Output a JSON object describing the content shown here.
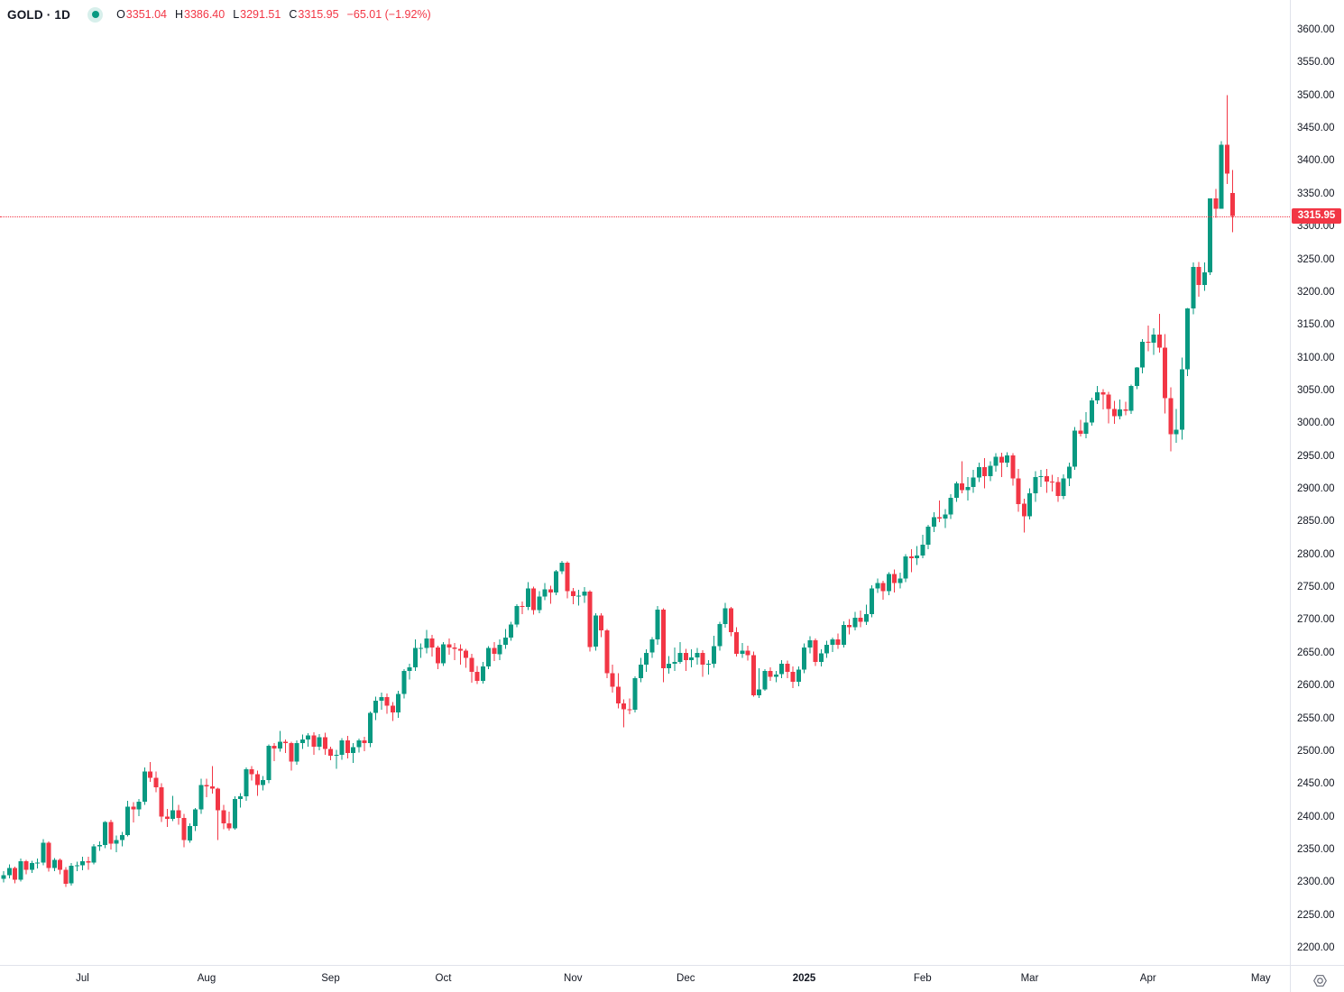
{
  "header": {
    "symbol_title": "GOLD · 1D",
    "ohlc": {
      "o_label": "O",
      "o": "3351.04",
      "h_label": "H",
      "h": "3386.40",
      "l_label": "L",
      "l": "3291.51",
      "c_label": "C",
      "c": "3315.95",
      "change": "−65.01 (−1.92%)"
    }
  },
  "colors": {
    "up": "#089981",
    "down": "#f23645",
    "axis_text": "#131722",
    "separator": "#e0e3eb",
    "last_price_bg": "#f23645",
    "last_price_text": "#ffffff"
  },
  "icons": {
    "indicator_dot": "teal-dot",
    "gear": "settings-gear"
  },
  "chart_data": {
    "type": "candlestick",
    "title": "GOLD · 1D",
    "symbol": "GOLD",
    "interval": "1D",
    "last_price": 3315.95,
    "last_price_label": "3315.95",
    "y_axis": {
      "min": 2200,
      "max": 3600,
      "step": 50,
      "ticks": [
        "3600.00",
        "3550.00",
        "3500.00",
        "3450.00",
        "3400.00",
        "3350.00",
        "3300.00",
        "3250.00",
        "3200.00",
        "3150.00",
        "3100.00",
        "3050.00",
        "3000.00",
        "2950.00",
        "2900.00",
        "2850.00",
        "2800.00",
        "2750.00",
        "2700.00",
        "2650.00",
        "2600.00",
        "2550.00",
        "2500.00",
        "2450.00",
        "2400.00",
        "2350.00",
        "2300.00",
        "2250.00",
        "2200.00"
      ]
    },
    "x_axis": {
      "labels": [
        {
          "label": "Jul",
          "index": 14,
          "year": false
        },
        {
          "label": "Aug",
          "index": 36,
          "year": false
        },
        {
          "label": "Sep",
          "index": 58,
          "year": false
        },
        {
          "label": "Oct",
          "index": 78,
          "year": false
        },
        {
          "label": "Nov",
          "index": 101,
          "year": false
        },
        {
          "label": "Dec",
          "index": 121,
          "year": false
        },
        {
          "label": "2025",
          "index": 142,
          "year": true
        },
        {
          "label": "Feb",
          "index": 163,
          "year": false
        },
        {
          "label": "Mar",
          "index": 182,
          "year": false
        },
        {
          "label": "Apr",
          "index": 203,
          "year": false
        },
        {
          "label": "May",
          "index": 223,
          "year": false
        }
      ]
    },
    "candles": [
      [
        2305,
        2317,
        2300,
        2311
      ],
      [
        2311,
        2327,
        2306,
        2322
      ],
      [
        2322,
        2324,
        2298,
        2304
      ],
      [
        2304,
        2336,
        2301,
        2332
      ],
      [
        2332,
        2334,
        2312,
        2319
      ],
      [
        2319,
        2333,
        2314,
        2329
      ],
      [
        2329,
        2336,
        2321,
        2330
      ],
      [
        2330,
        2366,
        2326,
        2360
      ],
      [
        2360,
        2362,
        2316,
        2322
      ],
      [
        2322,
        2337,
        2317,
        2334
      ],
      [
        2334,
        2336,
        2312,
        2319
      ],
      [
        2319,
        2323,
        2293,
        2298
      ],
      [
        2298,
        2329,
        2295,
        2325
      ],
      [
        2325,
        2331,
        2317,
        2326
      ],
      [
        2326,
        2339,
        2318,
        2332
      ],
      [
        2332,
        2339,
        2319,
        2330
      ],
      [
        2330,
        2358,
        2327,
        2355
      ],
      [
        2355,
        2362,
        2348,
        2357
      ],
      [
        2357,
        2393,
        2352,
        2392
      ],
      [
        2392,
        2395,
        2350,
        2359
      ],
      [
        2359,
        2371,
        2346,
        2364
      ],
      [
        2364,
        2377,
        2355,
        2372
      ],
      [
        2372,
        2424,
        2370,
        2415
      ],
      [
        2415,
        2422,
        2391,
        2411
      ],
      [
        2411,
        2427,
        2401,
        2423
      ],
      [
        2423,
        2475,
        2418,
        2469
      ],
      [
        2469,
        2483,
        2453,
        2459
      ],
      [
        2459,
        2469,
        2437,
        2445
      ],
      [
        2445,
        2451,
        2392,
        2400
      ],
      [
        2400,
        2412,
        2384,
        2397
      ],
      [
        2397,
        2432,
        2393,
        2410
      ],
      [
        2410,
        2418,
        2388,
        2398
      ],
      [
        2398,
        2404,
        2353,
        2364
      ],
      [
        2364,
        2390,
        2360,
        2386
      ],
      [
        2386,
        2413,
        2378,
        2411
      ],
      [
        2411,
        2458,
        2404,
        2448
      ],
      [
        2448,
        2458,
        2430,
        2446
      ],
      [
        2446,
        2477,
        2435,
        2443
      ],
      [
        2443,
        2444,
        2364,
        2410
      ],
      [
        2410,
        2418,
        2381,
        2390
      ],
      [
        2390,
        2408,
        2379,
        2382
      ],
      [
        2382,
        2431,
        2380,
        2427
      ],
      [
        2427,
        2436,
        2414,
        2431
      ],
      [
        2431,
        2475,
        2424,
        2472
      ],
      [
        2472,
        2477,
        2455,
        2465
      ],
      [
        2465,
        2470,
        2432,
        2448
      ],
      [
        2448,
        2462,
        2440,
        2456
      ],
      [
        2456,
        2510,
        2451,
        2508
      ],
      [
        2508,
        2512,
        2485,
        2504
      ],
      [
        2504,
        2531,
        2499,
        2514
      ],
      [
        2514,
        2518,
        2497,
        2512
      ],
      [
        2512,
        2514,
        2470,
        2484
      ],
      [
        2484,
        2516,
        2479,
        2512
      ],
      [
        2512,
        2525,
        2503,
        2518
      ],
      [
        2518,
        2527,
        2507,
        2524
      ],
      [
        2524,
        2529,
        2494,
        2507
      ],
      [
        2507,
        2526,
        2501,
        2521
      ],
      [
        2521,
        2528,
        2494,
        2503
      ],
      [
        2503,
        2507,
        2486,
        2493
      ],
      [
        2493,
        2502,
        2473,
        2494
      ],
      [
        2494,
        2520,
        2487,
        2516
      ],
      [
        2516,
        2523,
        2489,
        2497
      ],
      [
        2497,
        2512,
        2482,
        2506
      ],
      [
        2506,
        2519,
        2498,
        2516
      ],
      [
        2516,
        2522,
        2500,
        2512
      ],
      [
        2512,
        2560,
        2506,
        2558
      ],
      [
        2558,
        2583,
        2547,
        2577
      ],
      [
        2577,
        2589,
        2563,
        2582
      ],
      [
        2582,
        2588,
        2557,
        2569
      ],
      [
        2569,
        2575,
        2546,
        2559
      ],
      [
        2559,
        2592,
        2551,
        2587
      ],
      [
        2587,
        2625,
        2580,
        2622
      ],
      [
        2622,
        2633,
        2609,
        2628
      ],
      [
        2628,
        2670,
        2622,
        2657
      ],
      [
        2657,
        2664,
        2642,
        2657
      ],
      [
        2657,
        2685,
        2649,
        2672
      ],
      [
        2672,
        2677,
        2644,
        2658
      ],
      [
        2658,
        2661,
        2625,
        2634
      ],
      [
        2634,
        2666,
        2630,
        2663
      ],
      [
        2663,
        2672,
        2647,
        2658
      ],
      [
        2658,
        2665,
        2639,
        2656
      ],
      [
        2656,
        2663,
        2632,
        2653
      ],
      [
        2653,
        2656,
        2627,
        2642
      ],
      [
        2642,
        2648,
        2604,
        2621
      ],
      [
        2621,
        2630,
        2602,
        2607
      ],
      [
        2607,
        2636,
        2603,
        2629
      ],
      [
        2629,
        2660,
        2625,
        2657
      ],
      [
        2657,
        2666,
        2637,
        2648
      ],
      [
        2648,
        2670,
        2639,
        2662
      ],
      [
        2662,
        2686,
        2656,
        2673
      ],
      [
        2673,
        2697,
        2668,
        2693
      ],
      [
        2693,
        2724,
        2689,
        2721
      ],
      [
        2721,
        2728,
        2709,
        2720
      ],
      [
        2720,
        2758,
        2715,
        2748
      ],
      [
        2748,
        2751,
        2708,
        2715
      ],
      [
        2715,
        2744,
        2710,
        2736
      ],
      [
        2736,
        2756,
        2730,
        2747
      ],
      [
        2747,
        2752,
        2725,
        2742
      ],
      [
        2742,
        2776,
        2738,
        2774
      ],
      [
        2774,
        2790,
        2770,
        2787
      ],
      [
        2787,
        2789,
        2733,
        2744
      ],
      [
        2744,
        2749,
        2724,
        2736
      ],
      [
        2736,
        2746,
        2722,
        2737
      ],
      [
        2737,
        2750,
        2726,
        2743
      ],
      [
        2743,
        2745,
        2652,
        2659
      ],
      [
        2659,
        2710,
        2653,
        2707
      ],
      [
        2707,
        2710,
        2674,
        2684
      ],
      [
        2684,
        2686,
        2611,
        2619
      ],
      [
        2619,
        2632,
        2589,
        2598
      ],
      [
        2598,
        2619,
        2565,
        2573
      ],
      [
        2573,
        2579,
        2536,
        2564
      ],
      [
        2564,
        2580,
        2556,
        2563
      ],
      [
        2563,
        2614,
        2559,
        2611
      ],
      [
        2611,
        2642,
        2605,
        2632
      ],
      [
        2632,
        2655,
        2621,
        2650
      ],
      [
        2650,
        2674,
        2642,
        2670
      ],
      [
        2670,
        2721,
        2662,
        2716
      ],
      [
        2716,
        2718,
        2605,
        2626
      ],
      [
        2626,
        2645,
        2618,
        2633
      ],
      [
        2633,
        2658,
        2622,
        2636
      ],
      [
        2636,
        2666,
        2633,
        2650
      ],
      [
        2650,
        2656,
        2622,
        2639
      ],
      [
        2639,
        2655,
        2628,
        2643
      ],
      [
        2643,
        2657,
        2632,
        2650
      ],
      [
        2650,
        2654,
        2613,
        2632
      ],
      [
        2632,
        2639,
        2617,
        2633
      ],
      [
        2633,
        2676,
        2627,
        2660
      ],
      [
        2660,
        2697,
        2653,
        2694
      ],
      [
        2694,
        2726,
        2688,
        2718
      ],
      [
        2718,
        2720,
        2675,
        2681
      ],
      [
        2681,
        2689,
        2644,
        2648
      ],
      [
        2648,
        2665,
        2642,
        2653
      ],
      [
        2653,
        2661,
        2638,
        2646
      ],
      [
        2646,
        2652,
        2583,
        2585
      ],
      [
        2585,
        2626,
        2581,
        2594
      ],
      [
        2594,
        2625,
        2592,
        2622
      ],
      [
        2622,
        2628,
        2607,
        2613
      ],
      [
        2613,
        2622,
        2605,
        2617
      ],
      [
        2617,
        2639,
        2611,
        2633
      ],
      [
        2633,
        2638,
        2611,
        2621
      ],
      [
        2621,
        2629,
        2596,
        2606
      ],
      [
        2606,
        2629,
        2599,
        2624
      ],
      [
        2624,
        2664,
        2619,
        2658
      ],
      [
        2658,
        2675,
        2649,
        2669
      ],
      [
        2669,
        2672,
        2630,
        2636
      ],
      [
        2636,
        2655,
        2629,
        2649
      ],
      [
        2649,
        2668,
        2642,
        2662
      ],
      [
        2662,
        2673,
        2651,
        2670
      ],
      [
        2670,
        2679,
        2656,
        2662
      ],
      [
        2662,
        2698,
        2658,
        2692
      ],
      [
        2692,
        2701,
        2678,
        2689
      ],
      [
        2689,
        2712,
        2684,
        2703
      ],
      [
        2703,
        2714,
        2689,
        2697
      ],
      [
        2697,
        2723,
        2692,
        2709
      ],
      [
        2709,
        2753,
        2704,
        2748
      ],
      [
        2748,
        2763,
        2741,
        2756
      ],
      [
        2756,
        2760,
        2731,
        2744
      ],
      [
        2744,
        2773,
        2738,
        2770
      ],
      [
        2770,
        2777,
        2742,
        2756
      ],
      [
        2756,
        2772,
        2748,
        2763
      ],
      [
        2763,
        2800,
        2758,
        2797
      ],
      [
        2797,
        2808,
        2773,
        2794
      ],
      [
        2794,
        2813,
        2784,
        2798
      ],
      [
        2798,
        2830,
        2794,
        2815
      ],
      [
        2815,
        2845,
        2808,
        2842
      ],
      [
        2842,
        2864,
        2834,
        2857
      ],
      [
        2857,
        2882,
        2849,
        2855
      ],
      [
        2855,
        2869,
        2840,
        2861
      ],
      [
        2861,
        2892,
        2854,
        2886
      ],
      [
        2886,
        2911,
        2880,
        2908
      ],
      [
        2908,
        2942,
        2893,
        2898
      ],
      [
        2898,
        2918,
        2882,
        2903
      ],
      [
        2903,
        2929,
        2894,
        2917
      ],
      [
        2917,
        2940,
        2910,
        2933
      ],
      [
        2933,
        2947,
        2901,
        2919
      ],
      [
        2919,
        2942,
        2912,
        2935
      ],
      [
        2935,
        2954,
        2926,
        2949
      ],
      [
        2949,
        2955,
        2918,
        2940
      ],
      [
        2940,
        2956,
        2933,
        2951
      ],
      [
        2951,
        2954,
        2905,
        2916
      ],
      [
        2916,
        2930,
        2865,
        2877
      ],
      [
        2877,
        2885,
        2833,
        2858
      ],
      [
        2858,
        2901,
        2853,
        2893
      ],
      [
        2893,
        2927,
        2880,
        2918
      ],
      [
        2918,
        2929,
        2903,
        2919
      ],
      [
        2919,
        2930,
        2894,
        2911
      ],
      [
        2911,
        2921,
        2896,
        2910
      ],
      [
        2910,
        2918,
        2880,
        2889
      ],
      [
        2889,
        2922,
        2884,
        2916
      ],
      [
        2916,
        2940,
        2904,
        2934
      ],
      [
        2934,
        2994,
        2929,
        2989
      ],
      [
        2989,
        3005,
        2980,
        2984
      ],
      [
        2984,
        3017,
        2977,
        3001
      ],
      [
        3001,
        3039,
        2996,
        3035
      ],
      [
        3035,
        3057,
        3029,
        3047
      ],
      [
        3047,
        3052,
        3021,
        3044
      ],
      [
        3044,
        3048,
        3000,
        3022
      ],
      [
        3022,
        3034,
        2999,
        3011
      ],
      [
        3011,
        3036,
        3006,
        3021
      ],
      [
        3021,
        3033,
        3012,
        3019
      ],
      [
        3019,
        3059,
        3014,
        3057
      ],
      [
        3057,
        3086,
        3052,
        3085
      ],
      [
        3085,
        3128,
        3076,
        3124
      ],
      [
        3124,
        3149,
        3110,
        3123
      ],
      [
        3123,
        3145,
        3104,
        3135
      ],
      [
        3135,
        3167,
        3108,
        3115
      ],
      [
        3115,
        3136,
        3015,
        3038
      ],
      [
        3038,
        3055,
        2957,
        2983
      ],
      [
        2983,
        3022,
        2970,
        2990
      ],
      [
        2990,
        3100,
        2975,
        3082
      ],
      [
        3082,
        3176,
        3072,
        3175
      ],
      [
        3175,
        3245,
        3166,
        3238
      ],
      [
        3238,
        3246,
        3193,
        3211
      ],
      [
        3211,
        3245,
        3202,
        3230
      ],
      [
        3230,
        3343,
        3226,
        3343
      ],
      [
        3343,
        3357,
        3313,
        3327
      ],
      [
        3327,
        3430,
        3327,
        3425
      ],
      [
        3425,
        3500,
        3365,
        3381
      ],
      [
        3351.04,
        3386.4,
        3291.51,
        3315.95
      ]
    ]
  }
}
